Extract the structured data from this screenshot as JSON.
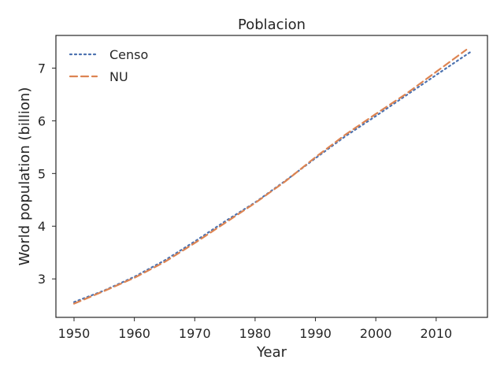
{
  "chart_data": {
    "type": "line",
    "title": "Poblacion",
    "xlabel": "Year",
    "ylabel": "World population (billion)",
    "xlim": [
      1947,
      2018.5
    ],
    "ylim": [
      2.27,
      7.62
    ],
    "xticks": [
      1950,
      1960,
      1970,
      1980,
      1990,
      2000,
      2010
    ],
    "yticks": [
      3,
      4,
      5,
      6,
      7
    ],
    "grid": false,
    "legend": "top-left",
    "series": [
      {
        "name": "Censo",
        "style": "dotted",
        "color": "#4c72b0",
        "x": [
          1950,
          1955,
          1960,
          1965,
          1970,
          1975,
          1980,
          1985,
          1990,
          1995,
          2000,
          2005,
          2010,
          2016
        ],
        "y": [
          2.56,
          2.78,
          3.04,
          3.35,
          3.71,
          4.09,
          4.45,
          4.86,
          5.29,
          5.71,
          6.09,
          6.48,
          6.87,
          7.33
        ]
      },
      {
        "name": "NU",
        "style": "dashed",
        "color": "#dd8452",
        "x": [
          1950,
          1955,
          1960,
          1965,
          1970,
          1975,
          1980,
          1985,
          1990,
          1995,
          2000,
          2005,
          2010,
          2015
        ],
        "y": [
          2.53,
          2.77,
          3.02,
          3.32,
          3.68,
          4.06,
          4.44,
          4.85,
          5.31,
          5.74,
          6.13,
          6.51,
          6.93,
          7.35
        ]
      }
    ]
  }
}
